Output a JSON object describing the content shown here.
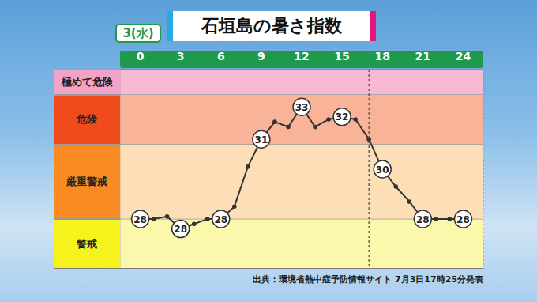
{
  "chart_data": {
    "type": "line",
    "title": "石垣島の暑さ指数",
    "subtitle": "3(水)",
    "source": "出典：環境省熱中症予防情報サイト 7月3日17時25分発表",
    "x": [
      0,
      1,
      2,
      3,
      4,
      5,
      6,
      7,
      8,
      9,
      10,
      11,
      12,
      13,
      14,
      15,
      16,
      17,
      18,
      19,
      20,
      21,
      22,
      23,
      24
    ],
    "values": [
      28,
      28.0,
      28.1,
      27.6,
      27.8,
      28.0,
      28,
      28.5,
      30.1,
      31.2,
      31.9,
      31.7,
      32.5,
      31.7,
      32.0,
      32.1,
      32.0,
      31.2,
      30.0,
      29.3,
      28.7,
      28,
      28,
      28,
      28
    ],
    "value_labels": [
      "28",
      null,
      null,
      "28",
      null,
      null,
      "28",
      null,
      null,
      "31",
      null,
      null,
      "33",
      null,
      null,
      "32",
      null,
      null,
      "30",
      null,
      null,
      "28",
      null,
      null,
      "28"
    ],
    "data_labels": true,
    "color": "#333333",
    "marker": "circle",
    "xlim": [
      -1.5,
      25.5
    ],
    "xticks": [
      0,
      3,
      6,
      9,
      12,
      15,
      18,
      21,
      24
    ],
    "ylim": [
      26,
      34
    ],
    "yticks": [
      26,
      28,
      31,
      33,
      34
    ],
    "tick_labels": "x",
    "grid": true,
    "forecast_line": 17,
    "bands": [
      {
        "label": "警戒",
        "from": 26,
        "to": 28,
        "color": "#fbf8ac",
        "label_color": "#f6f21c"
      },
      {
        "label": "厳重警戒",
        "from": 28,
        "to": 31,
        "color": "#fcdfb6",
        "label_color": "#f98b22"
      },
      {
        "label": "危険",
        "from": 31,
        "to": 33,
        "color": "#f9b398",
        "label_color": "#f04b1c"
      },
      {
        "label": "極めて危険",
        "from": 33,
        "to": 34,
        "color": "#f7b9d4",
        "label_color": "#f4a3c8"
      }
    ]
  }
}
